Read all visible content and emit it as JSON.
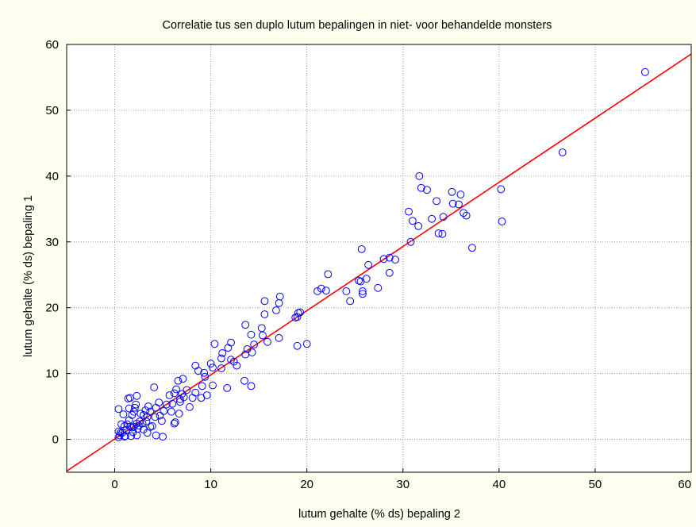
{
  "chart_data": {
    "type": "scatter",
    "title": "Correlatie tus sen duplo lutum bepalingen in niet- voor behandelde monsters",
    "xlabel": "lutum gehalte (% ds) bepaling 2",
    "ylabel": "lutum gehalte (% ds) bepaling 1",
    "xlim": [
      -5,
      60
    ],
    "ylim": [
      -5,
      60
    ],
    "xticks": [
      0,
      10,
      20,
      30,
      40,
      50,
      60
    ],
    "yticks": [
      0,
      10,
      20,
      30,
      40,
      50,
      60
    ],
    "grid": true,
    "colors": {
      "background": "#fffff0",
      "plot_bg": "#ffffff",
      "points": "#0000ff",
      "fit_line": "#ff0000",
      "grid": "#9a9a9a"
    },
    "fit_line": {
      "slope": 0.975,
      "intercept": 0.05,
      "color": "#ff0000"
    },
    "points": [
      [
        55.2,
        55.8
      ],
      [
        46.6,
        43.6
      ],
      [
        40.2,
        38.0
      ],
      [
        40.3,
        33.1
      ],
      [
        37.2,
        29.1
      ],
      [
        36.6,
        34.0
      ],
      [
        36.3,
        34.4
      ],
      [
        36.0,
        37.2
      ],
      [
        35.8,
        35.7
      ],
      [
        35.2,
        35.8
      ],
      [
        35.1,
        37.6
      ],
      [
        34.2,
        33.8
      ],
      [
        34.1,
        31.2
      ],
      [
        33.7,
        31.3
      ],
      [
        33.5,
        36.2
      ],
      [
        33.0,
        33.5
      ],
      [
        32.5,
        37.9
      ],
      [
        31.9,
        38.2
      ],
      [
        31.7,
        40.0
      ],
      [
        31.6,
        32.4
      ],
      [
        31.0,
        33.2
      ],
      [
        30.6,
        34.6
      ],
      [
        30.8,
        30.0
      ],
      [
        29.2,
        27.3
      ],
      [
        28.6,
        27.6
      ],
      [
        28.6,
        25.3
      ],
      [
        28.0,
        27.4
      ],
      [
        27.4,
        23.0
      ],
      [
        26.4,
        26.5
      ],
      [
        26.2,
        24.4
      ],
      [
        25.8,
        22.1
      ],
      [
        25.8,
        22.5
      ],
      [
        25.7,
        28.9
      ],
      [
        25.6,
        24.0
      ],
      [
        25.4,
        24.1
      ],
      [
        24.5,
        21.0
      ],
      [
        24.1,
        22.5
      ],
      [
        22.2,
        25.1
      ],
      [
        22.0,
        22.6
      ],
      [
        21.5,
        22.9
      ],
      [
        21.1,
        22.5
      ],
      [
        20.0,
        14.5
      ],
      [
        19.3,
        19.3
      ],
      [
        19.1,
        19.2
      ],
      [
        19.0,
        18.6
      ],
      [
        19.0,
        14.2
      ],
      [
        18.8,
        18.5
      ],
      [
        17.2,
        21.7
      ],
      [
        17.1,
        20.7
      ],
      [
        17.1,
        15.4
      ],
      [
        16.8,
        19.6
      ],
      [
        15.9,
        14.8
      ],
      [
        15.6,
        19.0
      ],
      [
        15.6,
        21.0
      ],
      [
        15.4,
        15.8
      ],
      [
        15.3,
        16.9
      ],
      [
        14.5,
        14.4
      ],
      [
        14.2,
        15.9
      ],
      [
        14.3,
        13.2
      ],
      [
        14.2,
        8.1
      ],
      [
        13.8,
        13.7
      ],
      [
        13.6,
        17.4
      ],
      [
        13.6,
        12.9
      ],
      [
        13.5,
        8.9
      ],
      [
        12.7,
        11.2
      ],
      [
        12.4,
        11.8
      ],
      [
        12.1,
        12.1
      ],
      [
        12.1,
        14.7
      ],
      [
        11.8,
        13.9
      ],
      [
        11.7,
        7.8
      ],
      [
        11.2,
        13.1
      ],
      [
        11.1,
        12.3
      ],
      [
        11.1,
        10.8
      ],
      [
        10.4,
        14.5
      ],
      [
        10.2,
        10.9
      ],
      [
        10.0,
        11.5
      ],
      [
        10.2,
        8.2
      ],
      [
        9.6,
        6.7
      ],
      [
        9.4,
        9.5
      ],
      [
        9.3,
        10.1
      ],
      [
        9.1,
        8.1
      ],
      [
        9.0,
        6.3
      ],
      [
        8.7,
        10.4
      ],
      [
        8.4,
        11.2
      ],
      [
        8.4,
        7.1
      ],
      [
        8.1,
        6.3
      ],
      [
        7.8,
        4.9
      ],
      [
        7.5,
        7.5
      ],
      [
        7.2,
        6.4
      ],
      [
        7.1,
        9.2
      ],
      [
        7.0,
        6.9
      ],
      [
        6.8,
        6.1
      ],
      [
        6.8,
        5.7
      ],
      [
        6.7,
        3.9
      ],
      [
        6.6,
        8.9
      ],
      [
        6.4,
        7.6
      ],
      [
        6.2,
        7.0
      ],
      [
        6.3,
        2.6
      ],
      [
        6.2,
        2.4
      ],
      [
        6.0,
        5.4
      ],
      [
        5.9,
        4.2
      ],
      [
        5.7,
        6.7
      ],
      [
        5.4,
        5.3
      ],
      [
        5.1,
        4.3
      ],
      [
        5.0,
        0.4
      ],
      [
        4.9,
        2.8
      ],
      [
        4.7,
        3.6
      ],
      [
        4.6,
        5.6
      ],
      [
        4.3,
        4.8
      ],
      [
        4.2,
        3.4
      ],
      [
        4.1,
        7.9
      ],
      [
        3.9,
        2.0
      ],
      [
        3.7,
        1.9
      ],
      [
        3.7,
        4.2
      ],
      [
        3.5,
        5.0
      ],
      [
        3.4,
        3.4
      ],
      [
        3.3,
        2.7
      ],
      [
        3.2,
        4.4
      ],
      [
        3.0,
        3.7
      ],
      [
        3.0,
        1.5
      ],
      [
        2.9,
        2.4
      ],
      [
        2.7,
        3.9
      ],
      [
        2.6,
        2.7
      ],
      [
        2.5,
        2.1
      ],
      [
        2.4,
        1.6
      ],
      [
        2.3,
        2.4
      ],
      [
        2.3,
        6.6
      ],
      [
        2.2,
        5.3
      ],
      [
        2.1,
        4.8
      ],
      [
        2.0,
        4.2
      ],
      [
        2.0,
        1.9
      ],
      [
        1.9,
        1.1
      ],
      [
        1.8,
        3.7
      ],
      [
        1.8,
        1.8
      ],
      [
        1.7,
        0.5
      ],
      [
        1.6,
        1.9
      ],
      [
        1.5,
        2.9
      ],
      [
        1.5,
        4.7
      ],
      [
        1.4,
        6.2
      ],
      [
        1.3,
        2.3
      ],
      [
        1.2,
        1.4
      ],
      [
        1.1,
        0.5
      ],
      [
        1.0,
        0.4
      ],
      [
        1.0,
        2.0
      ],
      [
        0.9,
        3.8
      ],
      [
        0.8,
        1.0
      ],
      [
        0.7,
        2.3
      ],
      [
        0.6,
        1.0
      ],
      [
        0.5,
        0.6
      ],
      [
        0.4,
        4.6
      ],
      [
        0.4,
        1.2
      ],
      [
        0.4,
        0.3
      ],
      [
        1.6,
        6.3
      ],
      [
        2.3,
        0.6
      ],
      [
        4.3,
        0.6
      ],
      [
        3.4,
        1.0
      ]
    ]
  }
}
